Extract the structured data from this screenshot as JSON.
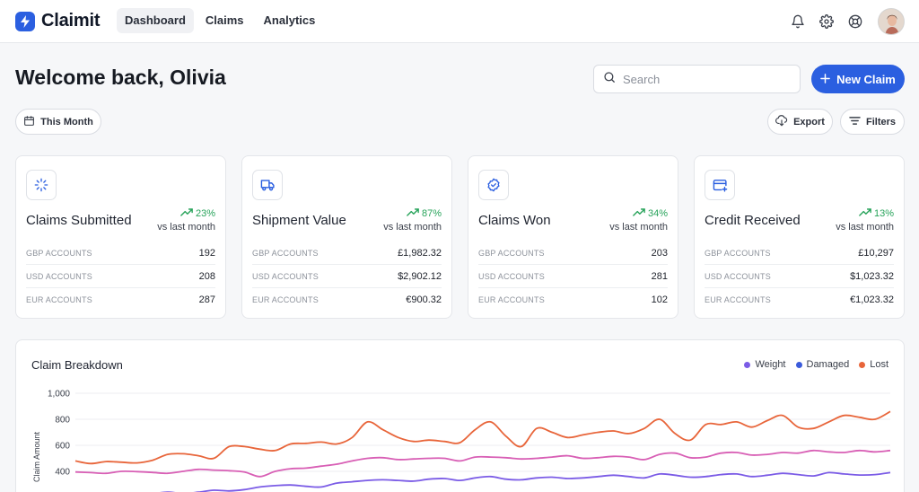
{
  "app": {
    "name": "Claimit",
    "accent": "#2b5fe0"
  },
  "nav": [
    {
      "label": "Dashboard",
      "active": true
    },
    {
      "label": "Claims",
      "active": false
    },
    {
      "label": "Analytics",
      "active": false
    }
  ],
  "topbar_icons": [
    "bell-icon",
    "gear-icon",
    "lifebuoy-icon"
  ],
  "header": {
    "welcome": "Welcome back, Olivia",
    "search_placeholder": "Search",
    "new_claim_label": "New Claim"
  },
  "toolbar": {
    "period_label": "This Month",
    "export_label": "Export",
    "filters_label": "Filters"
  },
  "cards": [
    {
      "icon": "loader-icon",
      "title": "Claims Submitted",
      "trend": "23%",
      "trend_sub": "vs last month",
      "rows": [
        {
          "label": "GBP ACCOUNTS",
          "value": "192"
        },
        {
          "label": "USD ACCOUNTS",
          "value": "208"
        },
        {
          "label": "EUR ACCOUNTS",
          "value": "287"
        }
      ]
    },
    {
      "icon": "truck-icon",
      "title": "Shipment Value",
      "trend": "87%",
      "trend_sub": "vs last month",
      "rows": [
        {
          "label": "GBP ACCOUNTS",
          "value": "£1,982.32"
        },
        {
          "label": "USD ACCOUNTS",
          "value": "$2,902.12"
        },
        {
          "label": "EUR ACCOUNTS",
          "value": "€900.32"
        }
      ]
    },
    {
      "icon": "badge-check-icon",
      "title": "Claims Won",
      "trend": "34%",
      "trend_sub": "vs last month",
      "rows": [
        {
          "label": "GBP ACCOUNTS",
          "value": "203"
        },
        {
          "label": "USD ACCOUNTS",
          "value": "281"
        },
        {
          "label": "EUR ACCOUNTS",
          "value": "102"
        }
      ]
    },
    {
      "icon": "credit-card-plus-icon",
      "title": "Credit Received",
      "trend": "13%",
      "trend_sub": "vs last month",
      "rows": [
        {
          "label": "GBP ACCOUNTS",
          "value": "£10,297"
        },
        {
          "label": "USD ACCOUNTS",
          "value": "$1,023.32"
        },
        {
          "label": "EUR ACCOUNTS",
          "value": "€1,023.32"
        }
      ]
    }
  ],
  "colors": {
    "trend_up": "#27a35a",
    "weight": "#7b5ce6",
    "damaged": "#d85fb5",
    "lost": "#e8653a",
    "damaged_legend": "#3b5bdb"
  },
  "chart_data": {
    "type": "line",
    "title": "Claim Breakdown",
    "ylabel": "Claim Amount",
    "ylim": [
      0,
      1000
    ],
    "yticks": [
      "1,000",
      "800",
      "600",
      "400"
    ],
    "ytick_values": [
      1000,
      800,
      600,
      400
    ],
    "legend": [
      {
        "name": "Weight",
        "color": "#7b5ce6"
      },
      {
        "name": "Damaged",
        "color": "#3b5bdb"
      },
      {
        "name": "Lost",
        "color": "#e8653a"
      }
    ],
    "series": [
      {
        "name": "Lost",
        "color": "#e8653a",
        "values": [
          480,
          460,
          475,
          470,
          465,
          485,
          530,
          535,
          520,
          500,
          590,
          590,
          570,
          560,
          610,
          615,
          625,
          610,
          660,
          780,
          720,
          660,
          630,
          640,
          630,
          620,
          720,
          780,
          670,
          590,
          730,
          700,
          660,
          680,
          700,
          710,
          690,
          730,
          800,
          690,
          640,
          760,
          760,
          780,
          740,
          790,
          830,
          740,
          730,
          780,
          830,
          815,
          800,
          860
        ]
      },
      {
        "name": "Damaged",
        "color": "#d85fb5",
        "values": [
          395,
          390,
          385,
          400,
          398,
          392,
          385,
          400,
          415,
          410,
          405,
          395,
          360,
          400,
          420,
          425,
          440,
          455,
          480,
          500,
          505,
          490,
          495,
          500,
          500,
          480,
          510,
          510,
          505,
          495,
          500,
          510,
          520,
          500,
          505,
          515,
          510,
          490,
          530,
          540,
          505,
          510,
          540,
          545,
          525,
          530,
          545,
          540,
          560,
          550,
          545,
          560,
          550,
          560
        ]
      },
      {
        "name": "Weight",
        "color": "#7b5ce6",
        "values": [
          230,
          225,
          222,
          220,
          225,
          228,
          240,
          230,
          240,
          255,
          250,
          260,
          280,
          290,
          295,
          285,
          280,
          310,
          320,
          330,
          335,
          330,
          325,
          340,
          345,
          330,
          350,
          360,
          340,
          335,
          350,
          355,
          345,
          350,
          360,
          370,
          360,
          350,
          380,
          370,
          355,
          360,
          375,
          380,
          360,
          370,
          385,
          375,
          365,
          390,
          380,
          372,
          375,
          390
        ]
      }
    ]
  }
}
